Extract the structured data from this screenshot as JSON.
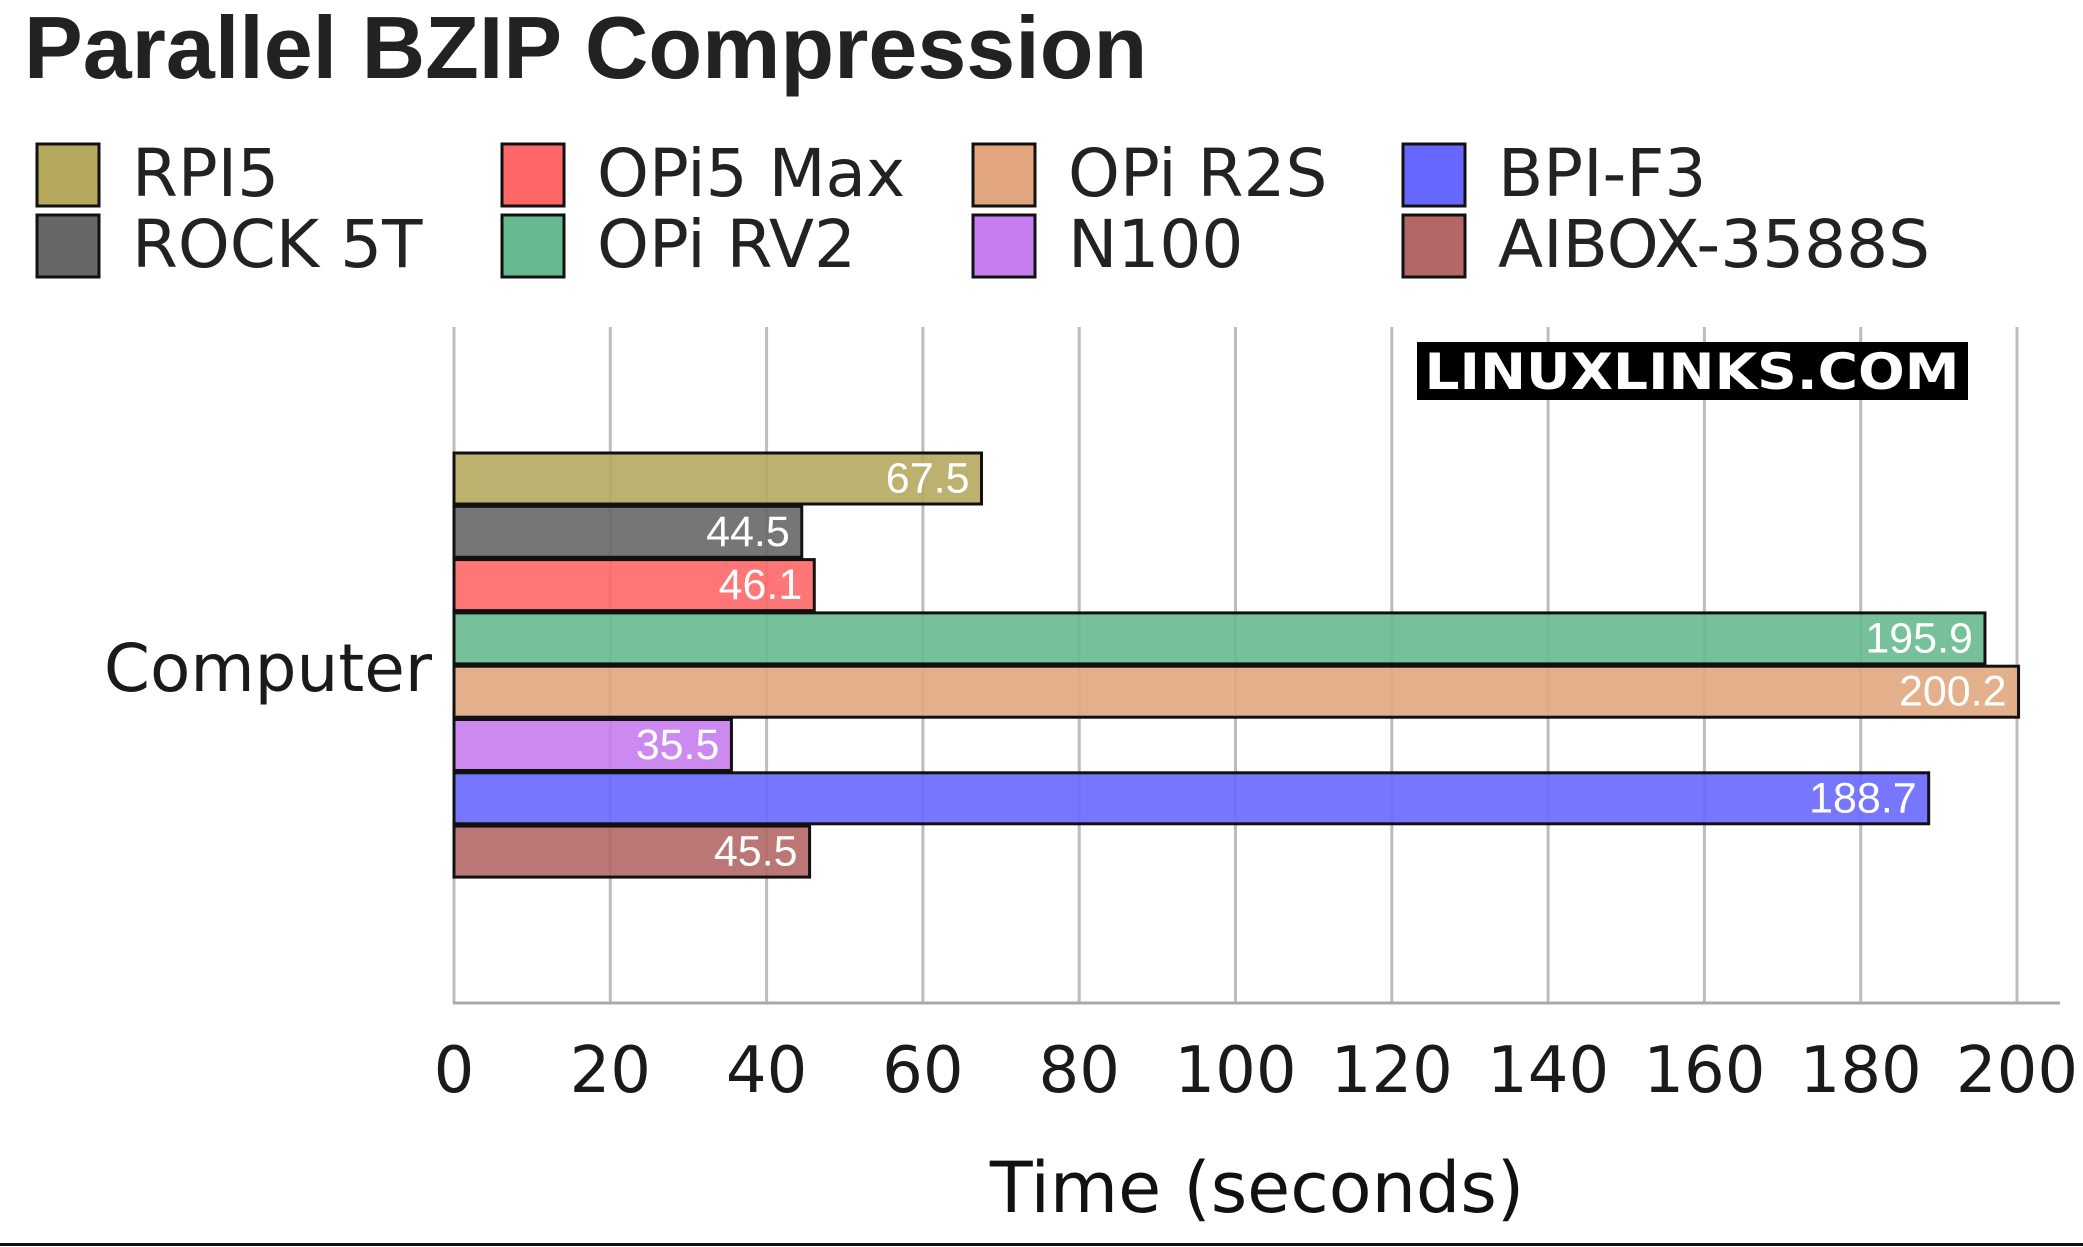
{
  "chart_data": {
    "type": "bar",
    "orientation": "horizontal",
    "title": "Parallel BZIP Compression",
    "xlabel": "Time (seconds)",
    "ylabel": "",
    "categories": [
      "Computer"
    ],
    "xlim": [
      0,
      205
    ],
    "xticks": [
      0,
      20,
      40,
      60,
      80,
      100,
      120,
      140,
      160,
      180,
      200
    ],
    "grid": "vertical",
    "legend_position": "top",
    "watermark": "LINUXLINKS.COM",
    "series": [
      {
        "name": "RPI5",
        "values": [
          67.5
        ],
        "color": "#b5a95e"
      },
      {
        "name": "ROCK 5T",
        "values": [
          44.5
        ],
        "color": "#676767"
      },
      {
        "name": "OPi5 Max",
        "values": [
          46.1
        ],
        "color": "#ff6767"
      },
      {
        "name": "OPi RV2",
        "values": [
          195.9
        ],
        "color": "#67b98f"
      },
      {
        "name": "OPi R2S",
        "values": [
          200.2
        ],
        "color": "#e1a67e"
      },
      {
        "name": "N100",
        "values": [
          35.5
        ],
        "color": "#c67df0"
      },
      {
        "name": "BPI-F3",
        "values": [
          188.7
        ],
        "color": "#6767ff"
      },
      {
        "name": "AIBOX-3588S",
        "values": [
          45.5
        ],
        "color": "#b46767"
      }
    ]
  }
}
